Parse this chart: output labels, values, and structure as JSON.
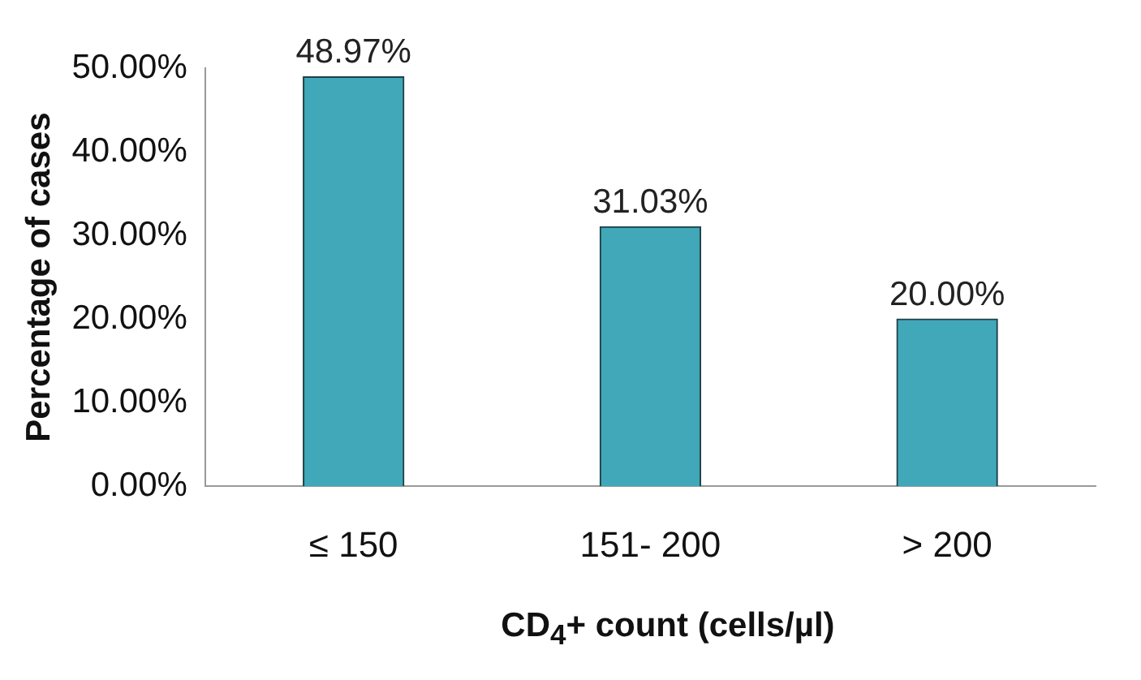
{
  "chart_data": {
    "type": "bar",
    "categories": [
      "≤ 150",
      "151- 200",
      "> 200"
    ],
    "values": [
      48.97,
      31.03,
      20.0
    ],
    "value_labels": [
      "48.97%",
      "31.03%",
      "20.00%"
    ],
    "color": "#40a8b8",
    "ylabel": "Percentage of cases",
    "xlabel": "CD$_{4}$+ count (cells/µl)",
    "ylim": [
      0,
      50
    ],
    "yticks": [
      {
        "value": 0,
        "label": "0.00%"
      },
      {
        "value": 10,
        "label": "10.00%"
      },
      {
        "value": 20,
        "label": "20.00%"
      },
      {
        "value": 30,
        "label": "30.00%"
      },
      {
        "value": 40,
        "label": "40.00%"
      },
      {
        "value": 50,
        "label": "50.00%"
      }
    ],
    "grid": false,
    "legend": false
  }
}
